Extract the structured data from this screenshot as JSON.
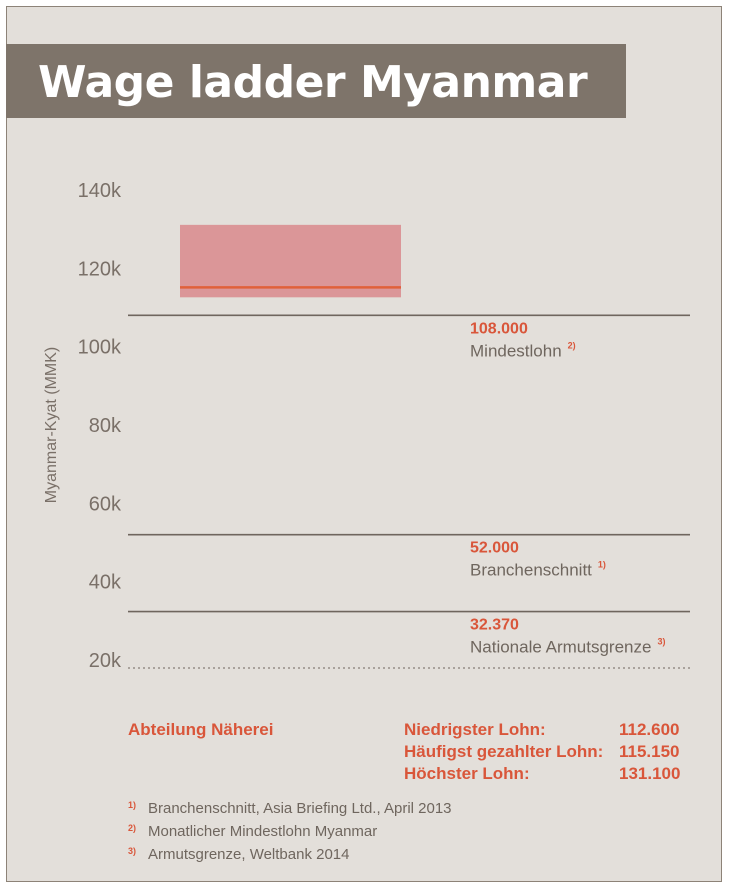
{
  "title": "Wage ladder Myanmar",
  "chart_data": {
    "type": "box",
    "title": "Wage ladder Myanmar",
    "ylabel": "Myanmar-Kyat (MMK)",
    "yticks": [
      "140k",
      "120k",
      "100k",
      "80k",
      "60k",
      "40k",
      "20k"
    ],
    "ytick_values": [
      140000,
      120000,
      100000,
      80000,
      60000,
      40000,
      20000
    ],
    "ylim": [
      20000,
      140000
    ],
    "box": {
      "name": "Abteilung Näherei",
      "low": 112600,
      "median": 115150,
      "high": 131100,
      "color": "#d9898c",
      "line_color": "#e0603a"
    },
    "reference_lines": [
      {
        "value": 108000,
        "value_label": "108.000",
        "label": "Mindestlohn",
        "note": "2)",
        "style": "solid"
      },
      {
        "value": 52000,
        "value_label": "52.000",
        "label": "Branchenschnitt",
        "note": "1)",
        "style": "solid"
      },
      {
        "value": 32370,
        "value_label": "32.370",
        "label": "Nationale Armutsgrenze",
        "note": "3)",
        "style": "solid"
      }
    ],
    "grid": false
  },
  "stats": {
    "department": "Abteilung Näherei",
    "rows": [
      {
        "label": "Niedrigster Lohn:",
        "value": "112.600"
      },
      {
        "label": "Häufigst gezahlter Lohn:",
        "value": "115.150"
      },
      {
        "label": "Höchster Lohn:",
        "value": "131.100"
      }
    ]
  },
  "footnotes": [
    {
      "mark": "1)",
      "text": "Branchenschnitt, Asia Briefing Ltd., April 2013"
    },
    {
      "mark": "2)",
      "text": "Monatlicher Mindestlohn Myanmar"
    },
    {
      "mark": "3)",
      "text": "Armutsgrenze, Weltbank 2014"
    }
  ],
  "colors": {
    "accent": "#d9563a",
    "title_bar": "#7e746a",
    "background": "#e3dfda",
    "box_fill": "#d9898c"
  }
}
